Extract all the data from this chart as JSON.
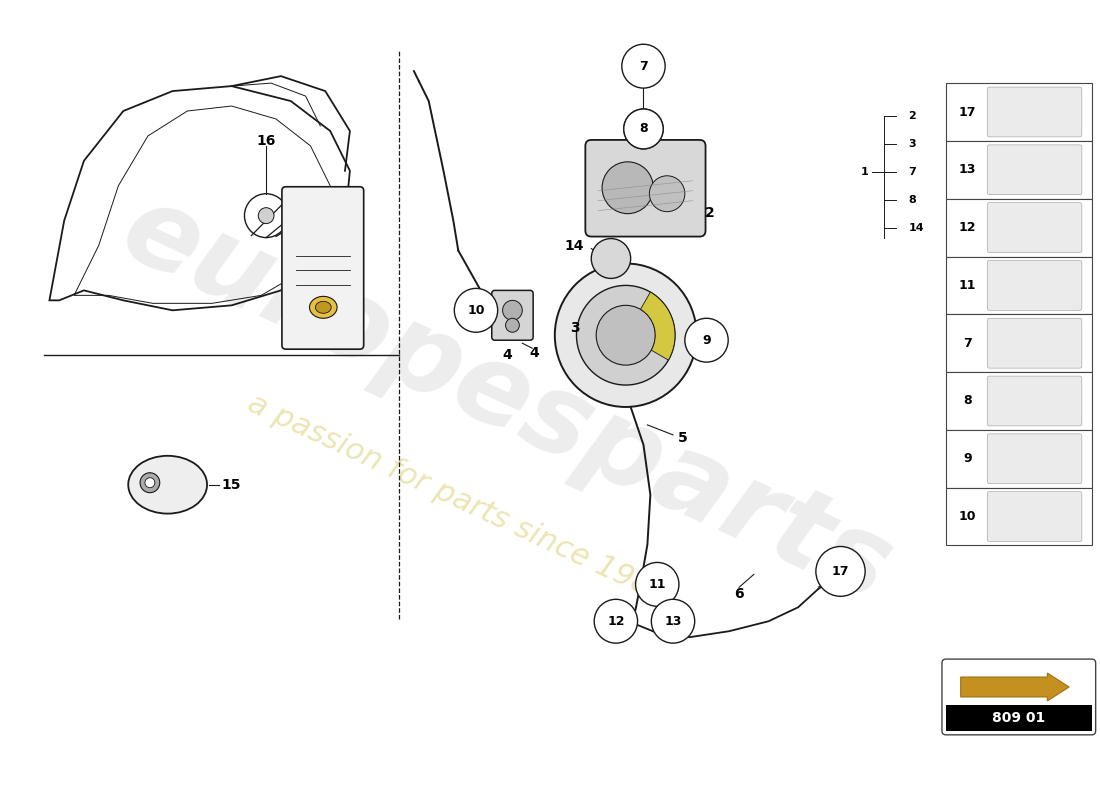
{
  "background_color": "#ffffff",
  "watermark_text": "europesparts",
  "watermark_subtext": "a passion for parts since 1985",
  "part_number": "809 01",
  "sidebar_items": [
    {
      "num": "17"
    },
    {
      "num": "13"
    },
    {
      "num": "12"
    },
    {
      "num": "11"
    },
    {
      "num": "7"
    },
    {
      "num": "8"
    },
    {
      "num": "9"
    },
    {
      "num": "10"
    }
  ],
  "ref_list": [
    "2",
    "3",
    "7",
    "8",
    "14"
  ],
  "colors": {
    "line": "#1a1a1a",
    "light_gray": "#d0d0d0",
    "mid_gray": "#b0b0b0",
    "dark_gray": "#888888",
    "yellow_part": "#d4b800",
    "arrow_orange": "#c8841a"
  }
}
